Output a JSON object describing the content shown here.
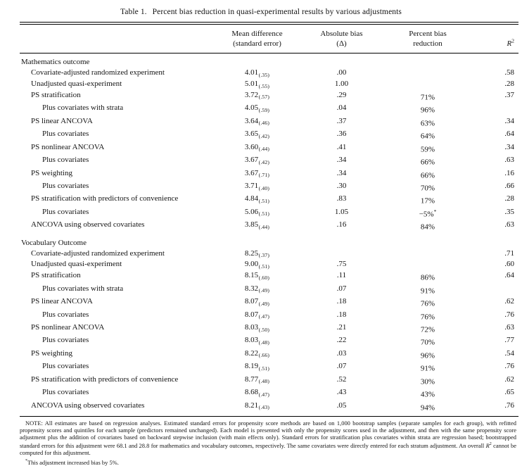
{
  "title": {
    "label": "Table 1.",
    "text": "Percent bias reduction in quasi-experimental results by various adjustments"
  },
  "columns": {
    "mean": {
      "line1": "Mean difference",
      "line2": "(standard error)"
    },
    "bias": {
      "line1": "Absolute bias",
      "line2": "(Δ)"
    },
    "pct": {
      "line1": "Percent bias",
      "line2": "reduction"
    },
    "r2": {
      "base": "R",
      "sup": "2"
    }
  },
  "sections": [
    {
      "header": "Mathematics outcome",
      "rows": [
        {
          "label": "Covariate-adjusted randomized experiment",
          "indent": 1,
          "mean": "4.01",
          "se": "(.35)",
          "bias": ".00",
          "r2": ".58"
        },
        {
          "label": "Unadjusted quasi-experiment",
          "indent": 1,
          "mean": "5.01",
          "se": "(.55)",
          "bias": "1.00",
          "r2": ".28"
        },
        {
          "label": "PS stratification",
          "indent": 1,
          "mean": "3.72",
          "se": "(.57)",
          "bias": ".29",
          "pct": "71%",
          "r2": ".37"
        },
        {
          "label": "Plus covariates with strata",
          "indent": 2,
          "mean": "4.05",
          "se": "(.59)",
          "bias": ".04",
          "pct": "96%"
        },
        {
          "label": "PS linear ANCOVA",
          "indent": 1,
          "mean": "3.64",
          "se": "(.46)",
          "bias": ".37",
          "pct": "63%",
          "r2": ".34"
        },
        {
          "label": "Plus covariates",
          "indent": 2,
          "mean": "3.65",
          "se": "(.42)",
          "bias": ".36",
          "pct": "64%",
          "r2": ".64"
        },
        {
          "label": "PS nonlinear ANCOVA",
          "indent": 1,
          "mean": "3.60",
          "se": "(.44)",
          "bias": ".41",
          "pct": "59%",
          "r2": ".34"
        },
        {
          "label": "Plus covariates",
          "indent": 2,
          "mean": "3.67",
          "se": "(.42)",
          "bias": ".34",
          "pct": "66%",
          "r2": ".63"
        },
        {
          "label": "PS weighting",
          "indent": 1,
          "mean": "3.67",
          "se": "(.71)",
          "bias": ".34",
          "pct": "66%",
          "r2": ".16"
        },
        {
          "label": "Plus covariates",
          "indent": 2,
          "mean": "3.71",
          "se": "(.40)",
          "bias": ".30",
          "pct": "70%",
          "r2": ".66"
        },
        {
          "label": "PS stratification with predictors of convenience",
          "indent": 1,
          "mean": "4.84",
          "se": "(.51)",
          "bias": ".83",
          "pct": "17%",
          "r2": ".28"
        },
        {
          "label": "Plus covariates",
          "indent": 2,
          "mean": "5.06",
          "se": "(.51)",
          "bias": "1.05",
          "pct": "−5%",
          "pct_mark": "*",
          "r2": ".35"
        },
        {
          "label": "ANCOVA using observed covariates",
          "indent": 1,
          "mean": "3.85",
          "se": "(.44)",
          "bias": ".16",
          "pct": "84%",
          "r2": ".63"
        }
      ]
    },
    {
      "header": "Vocabulary Outcome",
      "rows": [
        {
          "label": "Covariate-adjusted randomized experiment",
          "indent": 1,
          "mean": "8.25",
          "se": "(.37)",
          "r2": ".71"
        },
        {
          "label": "Unadjusted quasi-experiment",
          "indent": 1,
          "mean": "9.00",
          "se": "(.51)",
          "bias": ".75",
          "r2": ".60"
        },
        {
          "label": "PS stratification",
          "indent": 1,
          "mean": "8.15",
          "se": "(.60)",
          "bias": ".11",
          "pct": "86%",
          "r2": ".64"
        },
        {
          "label": "Plus covariates with strata",
          "indent": 2,
          "mean": "8.32",
          "se": "(.49)",
          "bias": ".07",
          "pct": "91%"
        },
        {
          "label": "PS linear ANCOVA",
          "indent": 1,
          "mean": "8.07",
          "se": "(.49)",
          "bias": ".18",
          "pct": "76%",
          "r2": ".62"
        },
        {
          "label": "Plus covariates",
          "indent": 2,
          "mean": "8.07",
          "se": "(.47)",
          "bias": ".18",
          "pct": "76%",
          "r2": ".76"
        },
        {
          "label": "PS nonlinear ANCOVA",
          "indent": 1,
          "mean": "8.03",
          "se": "(.50)",
          "bias": ".21",
          "pct": "72%",
          "r2": ".63"
        },
        {
          "label": "Plus covariates",
          "indent": 2,
          "mean": "8.03",
          "se": "(.48)",
          "bias": ".22",
          "pct": "70%",
          "r2": ".77"
        },
        {
          "label": "PS weighting",
          "indent": 1,
          "mean": "8.22",
          "se": "(.66)",
          "bias": ".03",
          "pct": "96%",
          "r2": ".54"
        },
        {
          "label": "Plus covariates",
          "indent": 2,
          "mean": "8.19",
          "se": "(.51)",
          "bias": ".07",
          "pct": "91%",
          "r2": ".76"
        },
        {
          "label": "PS stratification with predictors of convenience",
          "indent": 1,
          "mean": "8.77",
          "se": "(.48)",
          "bias": ".52",
          "pct": "30%",
          "r2": ".62"
        },
        {
          "label": "Plus covariates",
          "indent": 2,
          "mean": "8.68",
          "se": "(.47)",
          "bias": ".43",
          "pct": "43%",
          "r2": ".65"
        },
        {
          "label": "ANCOVA using observed covariates",
          "indent": 1,
          "mean": "8.21",
          "se": "(.43)",
          "bias": ".05",
          "pct": "94%",
          "r2": ".76"
        }
      ]
    }
  ],
  "note": {
    "label": "NOTE:",
    "text_before": "All estimates are based on regression analyses. Estimated standard errors for propensity score methods are based on 1,000 bootstrap samples (separate samples for each group), with refitted propensity scores and quintiles for each sample (predictors remained unchanged). Each model is presented with only the propensity scores used in the adjustment, and then with the same propensity score adjustment plus the addition of covariates based on backward stepwise inclusion (with main effects only). Standard errors for stratification plus covariates within strata are regression based; bootstrapped standard errors for this adjustment were 68.1 and 28.8 for mathematics and vocabulary outcomes, respectively. The same covariates were directly entered for each stratum adjustment. An overall ",
    "r_base": "R",
    "r_sup": "2",
    "text_after": " cannot be computed for this adjustment."
  },
  "footnote": {
    "marker": "*",
    "text": "This adjustment increased bias by 5%."
  }
}
